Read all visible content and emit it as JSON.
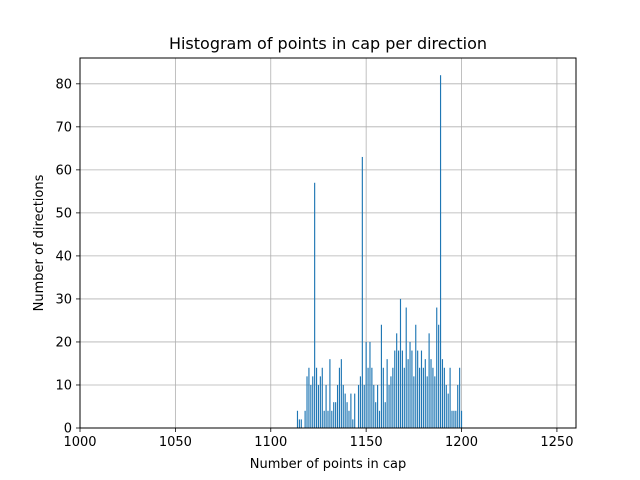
{
  "chart_data": {
    "type": "bar",
    "title": "Histogram of points in cap per direction",
    "xlabel": "Number of points in cap",
    "ylabel": "Number of directions",
    "xlim": [
      1000,
      1260
    ],
    "ylim": [
      0,
      86
    ],
    "grid": true,
    "xticks": [
      1000,
      1050,
      1100,
      1150,
      1200,
      1250
    ],
    "yticks": [
      0,
      10,
      20,
      30,
      40,
      50,
      60,
      70,
      80
    ],
    "bar_color": "#1f77b4",
    "bar_width": 0.6,
    "bins": [
      1114,
      1115,
      1116,
      1118,
      1119,
      1120,
      1121,
      1122,
      1123,
      1124,
      1125,
      1126,
      1127,
      1128,
      1129,
      1130,
      1131,
      1132,
      1133,
      1134,
      1135,
      1136,
      1137,
      1138,
      1139,
      1140,
      1141,
      1142,
      1143,
      1144,
      1146,
      1147,
      1148,
      1149,
      1150,
      1151,
      1152,
      1153,
      1154,
      1155,
      1156,
      1157,
      1158,
      1159,
      1160,
      1161,
      1162,
      1163,
      1164,
      1165,
      1166,
      1167,
      1168,
      1169,
      1170,
      1171,
      1172,
      1173,
      1174,
      1175,
      1176,
      1177,
      1178,
      1179,
      1180,
      1181,
      1182,
      1183,
      1184,
      1185,
      1186,
      1187,
      1188,
      1189,
      1190,
      1191,
      1192,
      1193,
      1194,
      1195,
      1196,
      1197,
      1198,
      1199,
      1200
    ],
    "values": [
      4,
      2,
      2,
      4,
      12,
      14,
      10,
      12,
      57,
      14,
      10,
      12,
      14,
      4,
      10,
      4,
      16,
      4,
      6,
      6,
      10,
      14,
      16,
      10,
      8,
      6,
      4,
      8,
      2,
      8,
      10,
      12,
      63,
      10,
      20,
      14,
      20,
      14,
      10,
      6,
      10,
      4,
      24,
      14,
      6,
      16,
      10,
      12,
      14,
      18,
      22,
      18,
      30,
      18,
      14,
      28,
      16,
      20,
      18,
      12,
      24,
      18,
      14,
      18,
      14,
      16,
      12,
      22,
      16,
      14,
      12,
      28,
      24,
      82,
      16,
      14,
      10,
      8,
      14,
      4,
      4,
      4,
      10,
      14,
      4
    ]
  }
}
